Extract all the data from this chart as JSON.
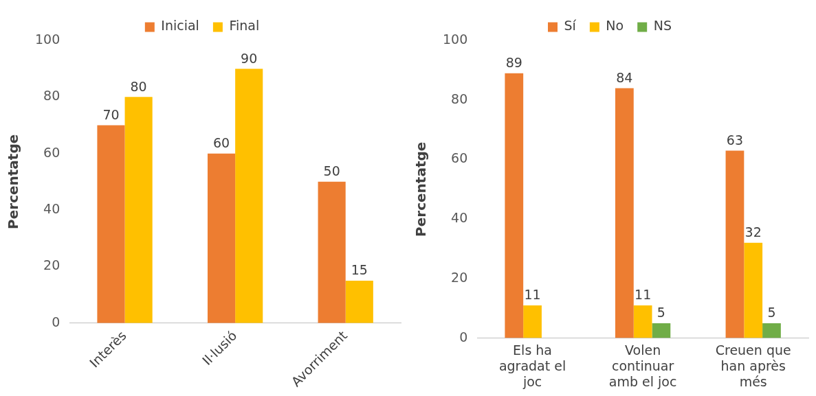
{
  "chart_data": [
    {
      "type": "bar",
      "categories": [
        "Interès",
        "Il·lusió",
        "Avorriment"
      ],
      "ylabel": "Percentatge",
      "ylim": [
        0,
        100
      ],
      "yticks": [
        0,
        20,
        40,
        60,
        80,
        100
      ],
      "grid": false,
      "legend": "top",
      "data_labels": true,
      "series": [
        {
          "name": "Inicial",
          "color": "#ed7d31",
          "values": [
            70,
            60,
            50
          ]
        },
        {
          "name": "Final",
          "color": "#ffc000",
          "values": [
            80,
            90,
            15
          ]
        }
      ]
    },
    {
      "type": "bar",
      "categories": [
        "Els ha agradat el joc",
        "Volen continuar amb el joc",
        "Creuen que han après més"
      ],
      "ylabel": "Percentatge",
      "ylim": [
        0,
        100
      ],
      "yticks": [
        0,
        20,
        40,
        60,
        80,
        100
      ],
      "grid": false,
      "legend": "top",
      "data_labels": true,
      "series": [
        {
          "name": "Sí",
          "color": "#ed7d31",
          "values": [
            89,
            84,
            63
          ]
        },
        {
          "name": "No",
          "color": "#ffc000",
          "values": [
            11,
            11,
            32
          ]
        },
        {
          "name": "NS",
          "color": "#70ad47",
          "values": [
            null,
            5,
            5
          ]
        }
      ]
    }
  ]
}
